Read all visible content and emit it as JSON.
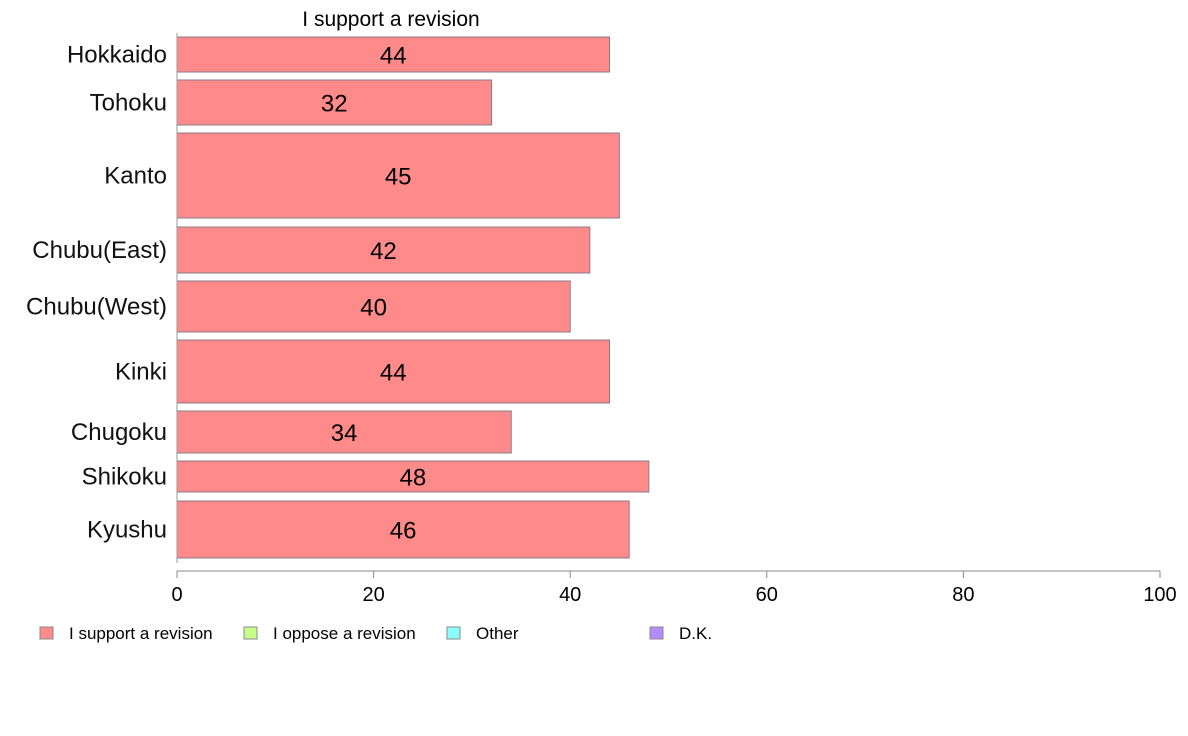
{
  "chart_data": {
    "type": "bar",
    "orientation": "horizontal",
    "title": "I support a revision",
    "xlabel": "",
    "ylabel": "",
    "xlim": [
      0,
      100
    ],
    "xticks": [
      "0",
      "20",
      "40",
      "60",
      "80",
      "100"
    ],
    "categories": [
      "Hokkaido",
      "Tohoku",
      "Kanto",
      "Chubu(East)",
      "Chubu(West)",
      "Kinki",
      "Chugoku",
      "Shikoku",
      "Kyushu"
    ],
    "values": [
      44,
      32,
      45,
      42,
      40,
      44,
      34,
      48,
      46
    ],
    "value_labels": [
      "44",
      "32",
      "45",
      "42",
      "40",
      "44",
      "34",
      "48",
      "46"
    ],
    "bar_color": "#ff8a8a",
    "bar_stroke": "#8a7a8a",
    "grid": false,
    "legend_position": "bottom",
    "legend": [
      {
        "label": "I support a revision",
        "color": "#ff8a8a"
      },
      {
        "label": "I oppose a revision",
        "color": "#c8ff8a"
      },
      {
        "label": "Other",
        "color": "#8affff"
      },
      {
        "label": "D.K.",
        "color": "#b48aff"
      }
    ]
  }
}
